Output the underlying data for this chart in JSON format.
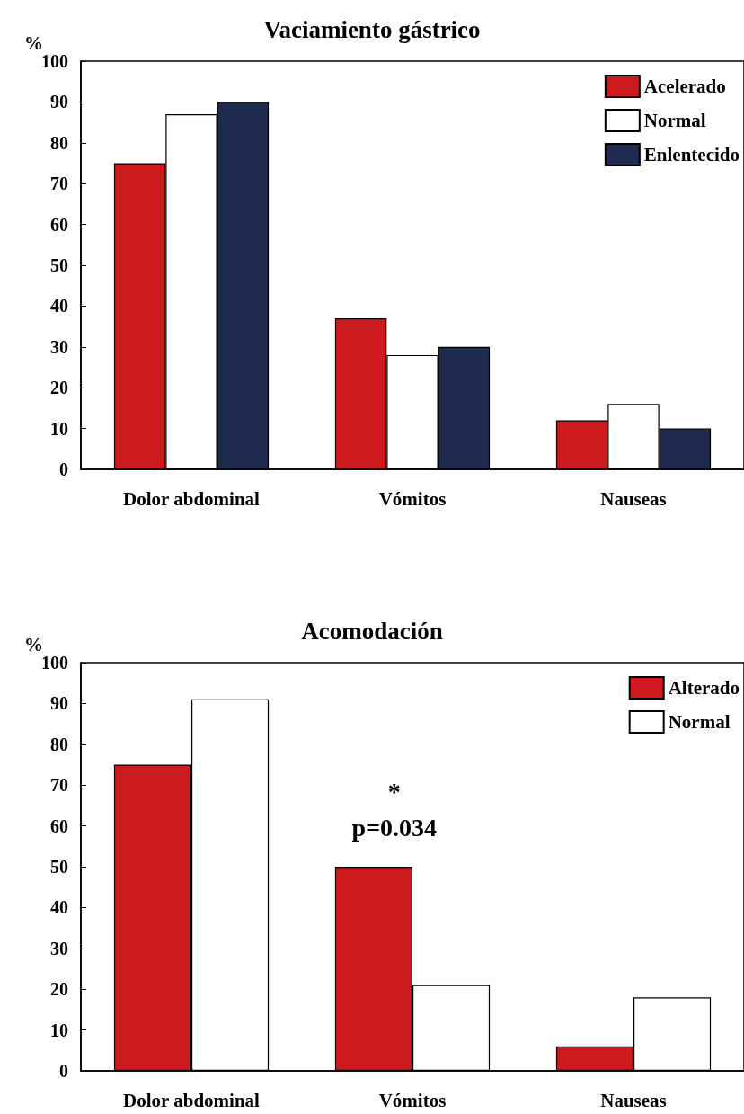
{
  "chart_data": [
    {
      "type": "bar",
      "title": "Vaciamiento gástrico",
      "ylabel": "%",
      "categories": [
        "Dolor abdominal",
        "Vómitos",
        "Nauseas"
      ],
      "series": [
        {
          "name": "Acelerado",
          "color": "#cc1a1f",
          "values": [
            75,
            37,
            12
          ]
        },
        {
          "name": "Normal",
          "color": "#ffffff",
          "values": [
            87,
            28,
            16
          ]
        },
        {
          "name": "Enlentecido",
          "color": "#1f2a4f",
          "values": [
            90,
            30,
            10
          ]
        }
      ],
      "ylim": [
        0,
        100
      ],
      "yticks": [
        0,
        10,
        20,
        30,
        40,
        50,
        60,
        70,
        80,
        90,
        100
      ],
      "grid": false,
      "legend": "top right"
    },
    {
      "type": "bar",
      "title": "Acomodación",
      "ylabel": "%",
      "categories": [
        "Dolor abdominal",
        "Vómitos",
        "Nauseas"
      ],
      "series": [
        {
          "name": "Alterado",
          "color": "#cc1a1f",
          "values": [
            75,
            50,
            6
          ]
        },
        {
          "name": "Normal",
          "color": "#ffffff",
          "values": [
            91,
            21,
            18
          ]
        }
      ],
      "ylim": [
        0,
        100
      ],
      "yticks": [
        0,
        10,
        20,
        30,
        40,
        50,
        60,
        70,
        80,
        90,
        100
      ],
      "grid": false,
      "legend": "top right",
      "annotations": [
        "*",
        "p=0.034"
      ]
    }
  ]
}
